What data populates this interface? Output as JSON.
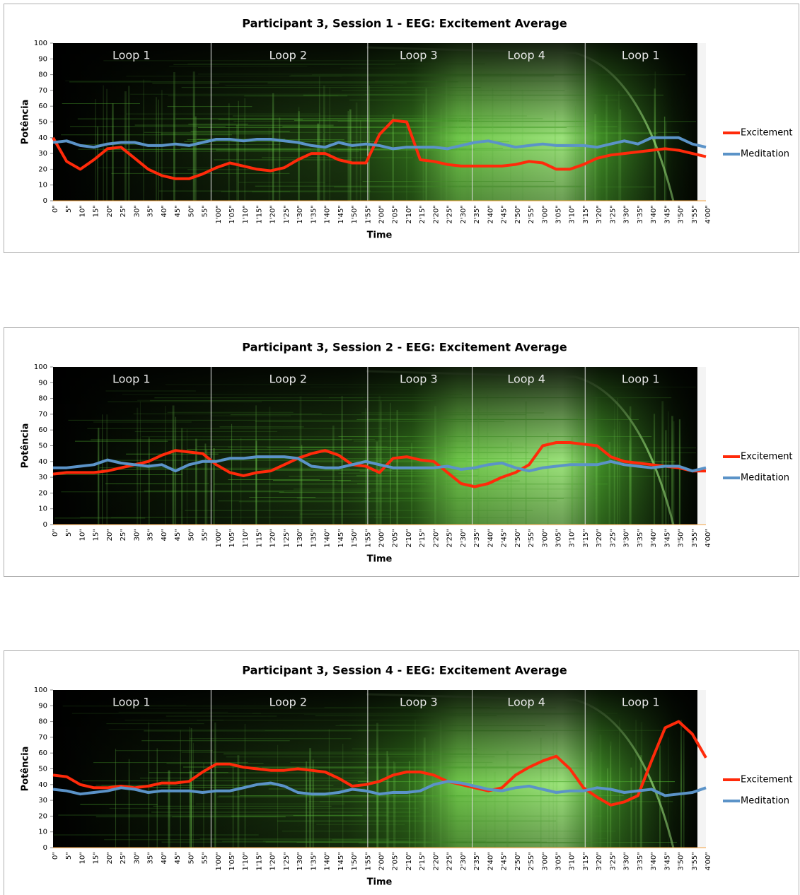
{
  "chart_data": [
    {
      "type": "line",
      "title": "Participant 3, Session 1 - EEG: Excitement Average",
      "x_label": "Time",
      "y_label": "Potência",
      "annotations": [
        "Loop 1",
        "Loop 2",
        "Loop 3",
        "Loop 4",
        "Loop 1"
      ],
      "categories": [
        "0\"",
        "5\"",
        "10\"",
        "15\"",
        "20\"",
        "25\"",
        "30\"",
        "35\"",
        "40\"",
        "45\"",
        "50\"",
        "55\"",
        "1'00\"",
        "1'05\"",
        "1'10\"",
        "1'15\"",
        "1'20\"",
        "1'25\"",
        "1'30\"",
        "1'35\"",
        "1'40\"",
        "1'45\"",
        "1'50\"",
        "1'55\"",
        "2'00\"",
        "2'05\"",
        "2'10\"",
        "2'15\"",
        "2'20\"",
        "2'25\"",
        "2'30\"",
        "2'35\"",
        "2'40\"",
        "2'45\"",
        "2'50\"",
        "2'55\"",
        "3'00\"",
        "3'05\"",
        "3'10\"",
        "3'15\"",
        "3'20\"",
        "3'25\"",
        "3'30\"",
        "3'35\"",
        "3'40\"",
        "3'45\"",
        "3'50\"",
        "3'55\"",
        "4'00\""
      ],
      "series": [
        {
          "name": "Excitement",
          "color": "#ff2a0a",
          "values": [
            40,
            25,
            20,
            26,
            33,
            34,
            27,
            20,
            16,
            14,
            14,
            17,
            21,
            24,
            22,
            20,
            19,
            21,
            26,
            30,
            30,
            26,
            24,
            24,
            42,
            51,
            50,
            26,
            25,
            23,
            22,
            22,
            22,
            22,
            23,
            25,
            24,
            20,
            20,
            23,
            27,
            29,
            30,
            31,
            32,
            33,
            32,
            30,
            28
          ]
        },
        {
          "name": "Meditation",
          "color": "#5b93c8",
          "values": [
            37,
            38,
            35,
            34,
            36,
            37,
            37,
            35,
            35,
            36,
            35,
            37,
            39,
            39,
            38,
            39,
            39,
            38,
            37,
            35,
            34,
            37,
            35,
            36,
            35,
            33,
            34,
            34,
            34,
            33,
            35,
            37,
            38,
            36,
            34,
            35,
            36,
            35,
            35,
            35,
            34,
            36,
            38,
            36,
            40,
            40,
            40,
            36,
            34
          ]
        }
      ],
      "ylim": [
        0,
        100
      ],
      "yticks": [
        0,
        10,
        20,
        30,
        40,
        50,
        60,
        70,
        80,
        90,
        100
      ],
      "grid": false,
      "legend": "right"
    },
    {
      "type": "line",
      "title": "Participant 3, Session 2 - EEG: Excitement Average",
      "x_label": "Time",
      "y_label": "Potência",
      "annotations": [
        "Loop 1",
        "Loop 2",
        "Loop 3",
        "Loop 4",
        "Loop 1"
      ],
      "categories": [
        "0\"",
        "5\"",
        "10\"",
        "15\"",
        "20\"",
        "25\"",
        "30\"",
        "35\"",
        "40\"",
        "45\"",
        "50\"",
        "55\"",
        "1'00\"",
        "1'05\"",
        "1'10\"",
        "1'15\"",
        "1'20\"",
        "1'25\"",
        "1'30\"",
        "1'35\"",
        "1'40\"",
        "1'45\"",
        "1'50\"",
        "1'55\"",
        "2'00\"",
        "2'05\"",
        "2'10\"",
        "2'15\"",
        "2'20\"",
        "2'25\"",
        "2'30\"",
        "2'35\"",
        "2'40\"",
        "2'45\"",
        "2'50\"",
        "2'55\"",
        "3'00\"",
        "3'05\"",
        "3'10\"",
        "3'15\"",
        "3'20\"",
        "3'25\"",
        "3'30\"",
        "3'35\"",
        "3'40\"",
        "3'45\"",
        "3'50\"",
        "3'55\"",
        "4'00\""
      ],
      "series": [
        {
          "name": "Excitement",
          "color": "#ff2a0a",
          "values": [
            32,
            33,
            33,
            33,
            34,
            36,
            38,
            40,
            44,
            47,
            46,
            45,
            38,
            33,
            31,
            33,
            34,
            38,
            42,
            45,
            47,
            44,
            38,
            37,
            33,
            42,
            43,
            41,
            40,
            33,
            26,
            24,
            26,
            30,
            33,
            38,
            50,
            52,
            52,
            51,
            50,
            43,
            40,
            39,
            38,
            37,
            36,
            34,
            34
          ]
        },
        {
          "name": "Meditation",
          "color": "#5b93c8",
          "values": [
            36,
            36,
            37,
            38,
            41,
            39,
            38,
            37,
            38,
            34,
            38,
            40,
            40,
            42,
            42,
            43,
            43,
            43,
            42,
            37,
            36,
            36,
            38,
            40,
            38,
            36,
            36,
            36,
            36,
            37,
            35,
            36,
            38,
            39,
            36,
            34,
            36,
            37,
            38,
            38,
            38,
            40,
            38,
            37,
            36,
            37,
            37,
            34,
            36
          ]
        }
      ],
      "ylim": [
        0,
        100
      ],
      "yticks": [
        0,
        10,
        20,
        30,
        40,
        50,
        60,
        70,
        80,
        90,
        100
      ],
      "grid": false,
      "legend": "right"
    },
    {
      "type": "line",
      "title": "Participant 3, Session 4 - EEG: Excitement Average",
      "x_label": "Time",
      "y_label": "Potência",
      "annotations": [
        "Loop 1",
        "Loop 2",
        "Loop 3",
        "Loop 4",
        "Loop 1"
      ],
      "categories": [
        "0\"",
        "5\"",
        "10\"",
        "15\"",
        "20\"",
        "25\"",
        "30\"",
        "35\"",
        "40\"",
        "45\"",
        "50\"",
        "55\"",
        "1'00\"",
        "1'05\"",
        "1'10\"",
        "1'15\"",
        "1'20\"",
        "1'25\"",
        "1'30\"",
        "1'35\"",
        "1'40\"",
        "1'45\"",
        "1'50\"",
        "1'55\"",
        "2'00\"",
        "2'05\"",
        "2'10\"",
        "2'15\"",
        "2'20\"",
        "2'25\"",
        "2'30\"",
        "2'35\"",
        "2'40\"",
        "2'45\"",
        "2'50\"",
        "2'55\"",
        "3'00\"",
        "3'05\"",
        "3'10\"",
        "3'15\"",
        "3'20\"",
        "3'25\"",
        "3'30\"",
        "3'35\"",
        "3'40\"",
        "3'45\"",
        "3'50\"",
        "3'55\"",
        "4'00\""
      ],
      "series": [
        {
          "name": "Excitement",
          "color": "#ff2a0a",
          "values": [
            46,
            45,
            40,
            38,
            38,
            39,
            38,
            39,
            41,
            41,
            42,
            48,
            53,
            53,
            51,
            50,
            49,
            49,
            50,
            49,
            48,
            44,
            39,
            40,
            42,
            46,
            48,
            48,
            46,
            42,
            40,
            38,
            36,
            38,
            46,
            51,
            55,
            58,
            50,
            38,
            32,
            27,
            29,
            33,
            55,
            76,
            80,
            72,
            57
          ]
        },
        {
          "name": "Meditation",
          "color": "#5b93c8",
          "values": [
            37,
            36,
            34,
            35,
            36,
            38,
            37,
            35,
            36,
            36,
            36,
            35,
            36,
            36,
            38,
            40,
            41,
            39,
            35,
            34,
            34,
            35,
            37,
            36,
            34,
            35,
            35,
            36,
            40,
            42,
            41,
            39,
            37,
            36,
            38,
            39,
            37,
            35,
            36,
            36,
            38,
            37,
            35,
            36,
            37,
            33,
            34,
            35,
            38
          ]
        }
      ],
      "ylim": [
        0,
        100
      ],
      "yticks": [
        0,
        10,
        20,
        30,
        40,
        50,
        60,
        70,
        80,
        90,
        100
      ],
      "grid": false,
      "legend": "right"
    }
  ]
}
